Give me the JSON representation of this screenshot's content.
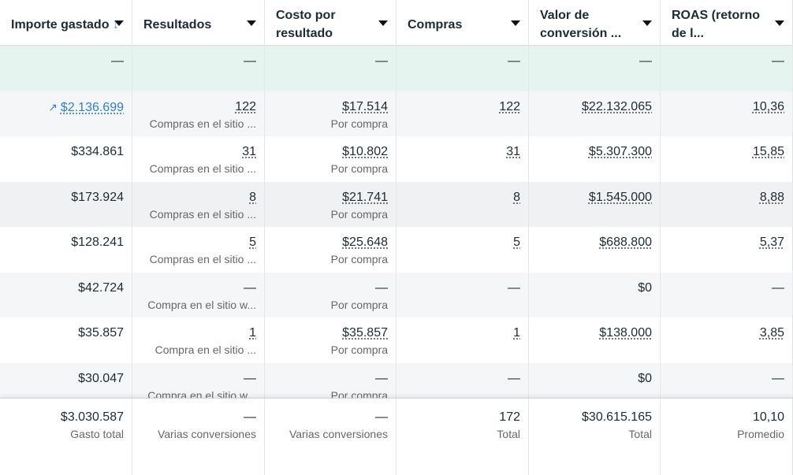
{
  "headers": [
    {
      "label": "Importe gastado",
      "sort_icon": "arrow-down"
    },
    {
      "label": "Resultados"
    },
    {
      "label": "Costo por resultado"
    },
    {
      "label": "Compras"
    },
    {
      "label": "Valor de conversión ..."
    },
    {
      "label": "ROAS (retorno de l..."
    }
  ],
  "summary_row": [
    "—",
    "—",
    "—",
    "—",
    "—",
    "—"
  ],
  "rows": [
    {
      "spend": "$2.136.699",
      "results": "122",
      "results_sub": "Compras en el sitio ...",
      "cpr": "$17.514",
      "cpr_sub": "Por compra",
      "purchases": "122",
      "conv_value": "$22.132.065",
      "roas": "10,36"
    },
    {
      "spend": "$334.861",
      "results": "31",
      "results_sub": "Compras en el sitio ...",
      "cpr": "$10.802",
      "cpr_sub": "Por compra",
      "purchases": "31",
      "conv_value": "$5.307.300",
      "roas": "15,85"
    },
    {
      "spend": "$173.924",
      "results": "8",
      "results_sub": "Compras en el sitio ...",
      "cpr": "$21.741",
      "cpr_sub": "Por compra",
      "purchases": "8",
      "conv_value": "$1.545.000",
      "roas": "8,88"
    },
    {
      "spend": "$128.241",
      "results": "5",
      "results_sub": "Compras en el sitio ...",
      "cpr": "$25.648",
      "cpr_sub": "Por compra",
      "purchases": "5",
      "conv_value": "$688.800",
      "roas": "5,37"
    },
    {
      "spend": "$42.724",
      "results": "—",
      "results_sub": "Compra en el sitio w...",
      "cpr": "—",
      "cpr_sub": "Por compra",
      "purchases": "—",
      "conv_value": "$0",
      "roas": "—"
    },
    {
      "spend": "$35.857",
      "results": "1",
      "results_sub": "Compra en el sitio ...",
      "cpr": "$35.857",
      "cpr_sub": "Por compra",
      "purchases": "1",
      "conv_value": "$138.000",
      "roas": "3,85"
    },
    {
      "spend": "$30.047",
      "results": "—",
      "results_sub": "Compra en el sitio w...",
      "cpr": "—",
      "cpr_sub": "Por compra",
      "purchases": "—",
      "conv_value": "$0",
      "roas": "—"
    }
  ],
  "totals": [
    {
      "value": "$3.030.587",
      "label": "Gasto total"
    },
    {
      "value": "—",
      "label": "Varias conversiones"
    },
    {
      "value": "—",
      "label": "Varias conversiones"
    },
    {
      "value": "172",
      "label": "Total"
    },
    {
      "value": "$30.615.165",
      "label": "Total"
    },
    {
      "value": "10,10",
      "label": "Promedio"
    }
  ]
}
